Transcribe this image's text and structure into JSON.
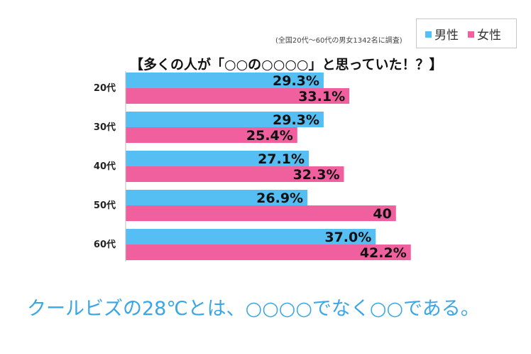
{
  "chart_data": {
    "type": "bar",
    "orientation": "horizontal",
    "title": "【多くの人が「○○の○○○○」と思っていた！？】",
    "note": "(全国20代〜60代の男女1342名に調査)",
    "categories": [
      "20代",
      "30代",
      "40代",
      "50代",
      "60代"
    ],
    "series": [
      {
        "name": "男性",
        "color": "#55bff3",
        "values": [
          29.3,
          29.3,
          27.1,
          26.9,
          37.0
        ],
        "labels": [
          "29.3%",
          "29.3%",
          "27.1%",
          "26.9%",
          "37.0%"
        ]
      },
      {
        "name": "女性",
        "color": "#f0609e",
        "values": [
          33.1,
          25.4,
          32.3,
          40,
          42.2
        ],
        "labels": [
          "33.1%",
          "25.4%",
          "32.3%",
          "40",
          "42.2%"
        ]
      }
    ],
    "legend_position": "top-right",
    "grid": false
  },
  "caption": "クールビズの28℃とは、○○○○でなく○○である。"
}
